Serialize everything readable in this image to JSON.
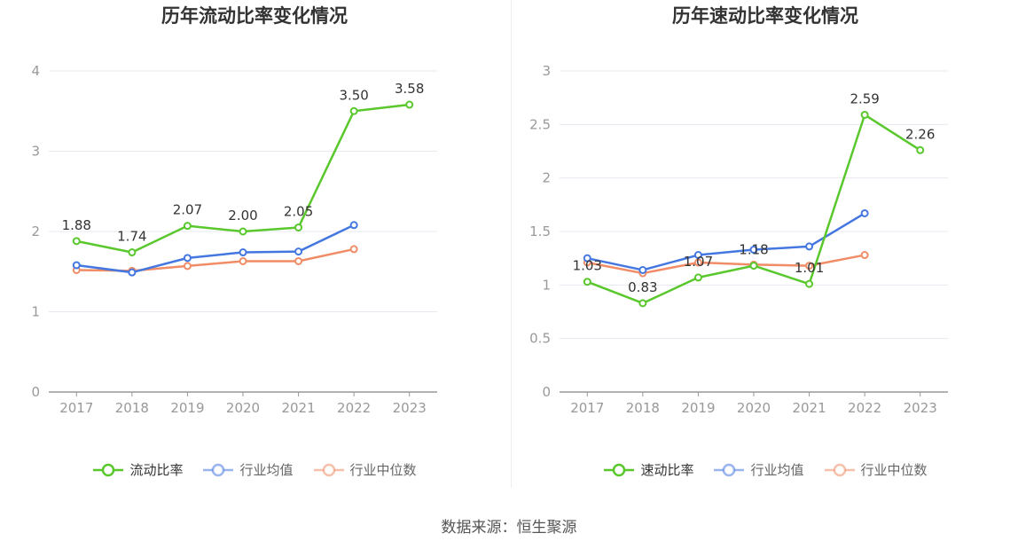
{
  "colors": {
    "series1": "#5ac82d",
    "series2": "#4577e0",
    "series3": "#f08c66",
    "axis": "#999999",
    "grid": "#e6e9f0",
    "text": "#333333"
  },
  "chart_data": [
    {
      "type": "line",
      "title": "历年流动比率变化情况",
      "categories": [
        "2017",
        "2018",
        "2019",
        "2020",
        "2021",
        "2022",
        "2023"
      ],
      "ylim": [
        0,
        4
      ],
      "yticks": [
        "0",
        "1",
        "2",
        "3",
        "4"
      ],
      "grid": true,
      "legend_placement": "bottom",
      "series": [
        {
          "name": "流动比率",
          "values": [
            1.88,
            1.74,
            2.07,
            2.0,
            2.05,
            3.5,
            3.58
          ],
          "labels": [
            "1.88",
            "1.74",
            "2.07",
            "2.00",
            "2.05",
            "3.50",
            "3.58"
          ]
        },
        {
          "name": "行业均值",
          "values": [
            1.58,
            1.49,
            1.67,
            1.74,
            1.75,
            2.08,
            null
          ],
          "labels": []
        },
        {
          "name": "行业中位数",
          "values": [
            1.52,
            1.51,
            1.57,
            1.63,
            1.63,
            1.78,
            null
          ],
          "labels": []
        }
      ]
    },
    {
      "type": "line",
      "title": "历年速动比率变化情况",
      "categories": [
        "2017",
        "2018",
        "2019",
        "2020",
        "2021",
        "2022",
        "2023"
      ],
      "ylim": [
        0,
        3
      ],
      "yticks": [
        "0",
        "0.5",
        "1",
        "1.5",
        "2",
        "2.5",
        "3"
      ],
      "grid": true,
      "legend_placement": "bottom",
      "series": [
        {
          "name": "速动比率",
          "values": [
            1.03,
            0.83,
            1.07,
            1.18,
            1.01,
            2.59,
            2.26
          ],
          "labels": [
            "1.03",
            "0.83",
            "1.07",
            "1.18",
            "1.01",
            "2.59",
            "2.26"
          ]
        },
        {
          "name": "行业均值",
          "values": [
            1.25,
            1.14,
            1.28,
            1.33,
            1.36,
            1.67,
            null
          ],
          "labels": []
        },
        {
          "name": "行业中位数",
          "values": [
            1.21,
            1.11,
            1.21,
            1.19,
            1.18,
            1.28,
            null
          ],
          "labels": []
        }
      ]
    }
  ],
  "footer": {
    "source": "数据来源：恒生聚源"
  }
}
